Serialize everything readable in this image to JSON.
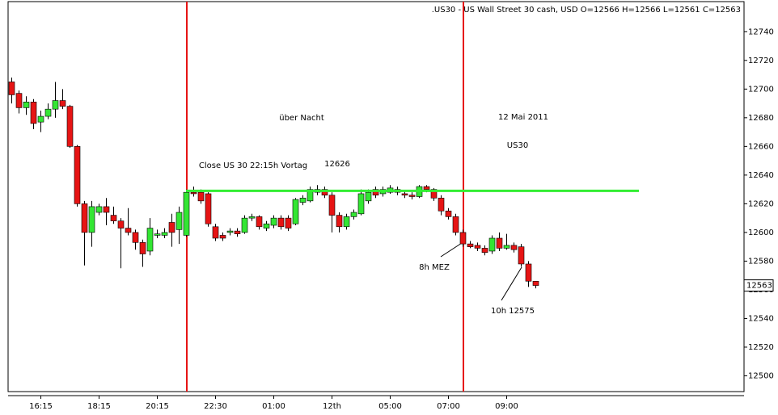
{
  "chart_data": {
    "type": "candlestick",
    "title": ".US30 - US Wall Street 30 cash, USD O=12566 H=12566 L=12561 C=12563",
    "annotations": [
      "über Nacht",
      "12 Mai 2011",
      "US30",
      "Close US 30 22:15h Vortag",
      "12626",
      "8h MEZ",
      "10h 12575"
    ],
    "categories": [
      null,
      null,
      null,
      null,
      "16:15",
      null,
      null,
      null,
      null,
      null,
      null,
      null,
      "18:15",
      null,
      null,
      null,
      null,
      null,
      null,
      null,
      "20:15",
      null,
      null,
      null,
      null,
      null,
      null,
      null,
      "22:30",
      null,
      null,
      null,
      null,
      null,
      null,
      null,
      "01:00",
      null,
      null,
      null,
      null,
      null,
      null,
      null,
      "12th",
      null,
      null,
      null,
      null,
      null,
      null,
      null,
      "05:00",
      null,
      null,
      null,
      null,
      null,
      null,
      null,
      "07:00",
      null,
      null,
      null,
      null,
      null,
      null,
      null,
      "09:00",
      null,
      null,
      null,
      null
    ],
    "series": {
      "up_color": "#33e633",
      "down_color": "#e61414",
      "open": [
        12705,
        12697,
        12687,
        12691,
        12677,
        12681,
        12686,
        12692,
        12688,
        12660,
        12620,
        12600,
        12614,
        12618,
        12612,
        12608,
        12603,
        12600,
        12593,
        12587,
        12598,
        12598,
        12607,
        12602,
        12598,
        12628,
        12628,
        12627,
        12604,
        12598,
        12600,
        12601,
        12600,
        12610,
        12611,
        12603,
        12605,
        12610,
        12610,
        12606,
        12621,
        12622,
        12628,
        12630,
        12626,
        12612,
        12604,
        12611,
        12613,
        12622,
        12630,
        12627,
        12628,
        12630,
        12627,
        12626,
        12625,
        12632,
        12630,
        12624,
        12615,
        12611,
        12600,
        12592,
        12591,
        12589,
        12587,
        12596,
        12589,
        12591,
        12590,
        12578,
        12566
      ],
      "high": [
        12708,
        12699,
        12695,
        12693,
        12685,
        12690,
        12705,
        12700,
        12689,
        12661,
        12622,
        12622,
        12620,
        12624,
        12618,
        12610,
        12617,
        12602,
        12595,
        12610,
        12602,
        12603,
        12613,
        12618,
        12630,
        12632,
        12630,
        12628,
        12606,
        12600,
        12603,
        12603,
        12612,
        12613,
        12612,
        12608,
        12612,
        12612,
        12612,
        12624,
        12626,
        12632,
        12633,
        12632,
        12628,
        12614,
        12613,
        12616,
        12630,
        12630,
        12632,
        12632,
        12633,
        12632,
        12629,
        12628,
        12633,
        12633,
        12631,
        12626,
        12617,
        12613,
        12602,
        12594,
        12593,
        12591,
        12598,
        12600,
        12599,
        12593,
        12592,
        12580,
        12566
      ],
      "low": [
        12690,
        12683,
        12682,
        12672,
        12670,
        12679,
        12680,
        12686,
        12659,
        12618,
        12577,
        12590,
        12612,
        12605,
        12606,
        12575,
        12598,
        12588,
        12576,
        12584,
        12596,
        12596,
        12590,
        12592,
        12597,
        12625,
        12620,
        12604,
        12594,
        12594,
        12598,
        12597,
        12599,
        12608,
        12602,
        12601,
        12603,
        12602,
        12601,
        12605,
        12619,
        12621,
        12626,
        12624,
        12600,
        12600,
        12602,
        12609,
        12612,
        12620,
        12624,
        12625,
        12627,
        12626,
        12624,
        12623,
        12624,
        12628,
        12622,
        12612,
        12609,
        12598,
        12590,
        12589,
        12587,
        12584,
        12585,
        12587,
        12588,
        12586,
        12576,
        12562,
        12561
      ],
      "close": [
        12696,
        12687,
        12691,
        12676,
        12681,
        12686,
        12692,
        12688,
        12660,
        12620,
        12600,
        12618,
        12618,
        12614,
        12608,
        12603,
        12600,
        12593,
        12585,
        12603,
        12599,
        12600,
        12600,
        12614,
        12628,
        12627,
        12622,
        12606,
        12596,
        12596,
        12601,
        12599,
        12610,
        12611,
        12604,
        12606,
        12610,
        12604,
        12603,
        12623,
        12624,
        12630,
        12630,
        12626,
        12612,
        12604,
        12611,
        12614,
        12627,
        12628,
        12626,
        12630,
        12631,
        12628,
        12626,
        12625,
        12632,
        12630,
        12624,
        12615,
        12611,
        12600,
        12592,
        12590,
        12589,
        12586,
        12596,
        12589,
        12591,
        12588,
        12578,
        12566,
        12563
      ]
    },
    "level_line": {
      "value": 12629,
      "color": "#33ee33"
    },
    "last_price": 12563,
    "ylim": [
      12489,
      12761
    ],
    "yticks": [
      12500,
      12520,
      12540,
      12560,
      12580,
      12600,
      12620,
      12640,
      12660,
      12680,
      12700,
      12720,
      12740
    ]
  }
}
